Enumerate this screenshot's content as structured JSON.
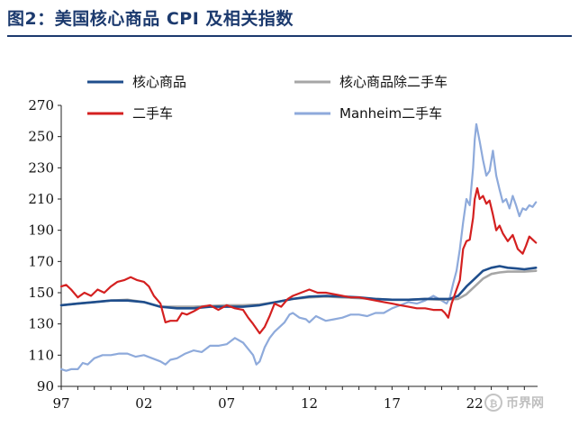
{
  "figure": {
    "title": "图2：美国核心商品 CPI 及相关指数"
  },
  "watermark": {
    "text": "币界网"
  },
  "chart_data": {
    "type": "line",
    "title": "图2：美国核心商品 CPI 及相关指数",
    "xlabel": "",
    "ylabel": "",
    "xlim": [
      1997,
      2025.8
    ],
    "ylim": [
      90,
      270
    ],
    "y_ticks": [
      90,
      110,
      130,
      150,
      170,
      190,
      210,
      230,
      250,
      270
    ],
    "x_ticks": [
      {
        "value": 1997,
        "label": "97"
      },
      {
        "value": 2002,
        "label": "02"
      },
      {
        "value": 2007,
        "label": "07"
      },
      {
        "value": 2012,
        "label": "12"
      },
      {
        "value": 2017,
        "label": "17"
      },
      {
        "value": 2022,
        "label": "22"
      }
    ],
    "grid": false,
    "legend_position": "top",
    "series": [
      {
        "name": "核心商品",
        "color": "#1f4e8c",
        "width": 2.6,
        "points": [
          [
            1997,
            142
          ],
          [
            1998,
            143
          ],
          [
            1999,
            144
          ],
          [
            2000,
            145
          ],
          [
            2001,
            145
          ],
          [
            2002,
            144
          ],
          [
            2003,
            141
          ],
          [
            2004,
            140
          ],
          [
            2005,
            140
          ],
          [
            2006,
            141
          ],
          [
            2007,
            141
          ],
          [
            2008,
            141
          ],
          [
            2009,
            142
          ],
          [
            2010,
            144
          ],
          [
            2011,
            146
          ],
          [
            2012,
            147.5
          ],
          [
            2013,
            148
          ],
          [
            2014,
            147.5
          ],
          [
            2015,
            147
          ],
          [
            2016,
            146
          ],
          [
            2017,
            145.5
          ],
          [
            2018,
            145.5
          ],
          [
            2019,
            146
          ],
          [
            2020,
            146
          ],
          [
            2020.5,
            146
          ],
          [
            2021,
            148
          ],
          [
            2021.5,
            154
          ],
          [
            2022,
            159
          ],
          [
            2022.5,
            164
          ],
          [
            2023,
            166
          ],
          [
            2023.5,
            167
          ],
          [
            2024,
            166
          ],
          [
            2024.5,
            165.5
          ],
          [
            2025,
            165
          ],
          [
            2025.7,
            166
          ]
        ]
      },
      {
        "name": "核心商品除二手车",
        "color": "#a6a6a6",
        "width": 2.6,
        "points": [
          [
            1997,
            142
          ],
          [
            1998,
            143
          ],
          [
            1999,
            144
          ],
          [
            2000,
            145
          ],
          [
            2001,
            145.5
          ],
          [
            2002,
            144
          ],
          [
            2003,
            141
          ],
          [
            2004,
            141
          ],
          [
            2005,
            141
          ],
          [
            2006,
            141.5
          ],
          [
            2007,
            142
          ],
          [
            2008,
            142
          ],
          [
            2009,
            142.5
          ],
          [
            2010,
            144
          ],
          [
            2011,
            146
          ],
          [
            2012,
            147
          ],
          [
            2013,
            147.5
          ],
          [
            2014,
            147
          ],
          [
            2015,
            146.5
          ],
          [
            2016,
            146
          ],
          [
            2017,
            145.5
          ],
          [
            2018,
            145.5
          ],
          [
            2019,
            146
          ],
          [
            2020,
            145.5
          ],
          [
            2021,
            146
          ],
          [
            2021.5,
            149
          ],
          [
            2022,
            154
          ],
          [
            2022.5,
            159
          ],
          [
            2023,
            162
          ],
          [
            2023.5,
            163
          ],
          [
            2024,
            163.5
          ],
          [
            2025,
            163.5
          ],
          [
            2025.7,
            164
          ]
        ]
      },
      {
        "name": "二手车",
        "color": "#d42020",
        "width": 2.2,
        "points": [
          [
            1997,
            154
          ],
          [
            1997.3,
            155
          ],
          [
            1997.6,
            152
          ],
          [
            1998,
            147
          ],
          [
            1998.4,
            150
          ],
          [
            1998.8,
            148
          ],
          [
            1999.2,
            152
          ],
          [
            1999.6,
            150
          ],
          [
            2000,
            154
          ],
          [
            2000.4,
            157
          ],
          [
            2000.8,
            158
          ],
          [
            2001.2,
            160
          ],
          [
            2001.6,
            158
          ],
          [
            2002,
            157
          ],
          [
            2002.3,
            154
          ],
          [
            2002.6,
            148
          ],
          [
            2003,
            143
          ],
          [
            2003.3,
            131
          ],
          [
            2003.6,
            132
          ],
          [
            2004,
            132
          ],
          [
            2004.3,
            137
          ],
          [
            2004.6,
            136
          ],
          [
            2005,
            138
          ],
          [
            2005.5,
            141
          ],
          [
            2006,
            142
          ],
          [
            2006.5,
            139
          ],
          [
            2007,
            142
          ],
          [
            2007.5,
            140
          ],
          [
            2008,
            139
          ],
          [
            2008.3,
            134
          ],
          [
            2008.6,
            130
          ],
          [
            2009,
            124
          ],
          [
            2009.3,
            128
          ],
          [
            2009.6,
            135
          ],
          [
            2009.9,
            143
          ],
          [
            2010.3,
            141
          ],
          [
            2010.7,
            146
          ],
          [
            2011,
            148
          ],
          [
            2011.5,
            150
          ],
          [
            2012,
            152
          ],
          [
            2012.5,
            150
          ],
          [
            2013,
            150
          ],
          [
            2013.5,
            149
          ],
          [
            2014,
            148
          ],
          [
            2014.5,
            147
          ],
          [
            2015,
            147
          ],
          [
            2015.5,
            146
          ],
          [
            2016,
            145
          ],
          [
            2016.5,
            144
          ],
          [
            2017,
            143
          ],
          [
            2017.5,
            142
          ],
          [
            2018,
            141
          ],
          [
            2018.5,
            140
          ],
          [
            2019,
            140
          ],
          [
            2019.5,
            139
          ],
          [
            2020,
            139
          ],
          [
            2020.2,
            137
          ],
          [
            2020.4,
            134
          ],
          [
            2020.6,
            143
          ],
          [
            2020.9,
            152
          ],
          [
            2021.1,
            158
          ],
          [
            2021.3,
            178
          ],
          [
            2021.5,
            183
          ],
          [
            2021.7,
            184
          ],
          [
            2021.9,
            198
          ],
          [
            2022,
            210
          ],
          [
            2022.15,
            217
          ],
          [
            2022.3,
            210
          ],
          [
            2022.5,
            212
          ],
          [
            2022.7,
            207
          ],
          [
            2022.9,
            209
          ],
          [
            2023.1,
            200
          ],
          [
            2023.3,
            190
          ],
          [
            2023.5,
            193
          ],
          [
            2023.7,
            188
          ],
          [
            2024,
            183
          ],
          [
            2024.3,
            187
          ],
          [
            2024.6,
            178
          ],
          [
            2024.9,
            175
          ],
          [
            2025.1,
            180
          ],
          [
            2025.3,
            186
          ],
          [
            2025.5,
            184
          ],
          [
            2025.7,
            182
          ]
        ]
      },
      {
        "name": "Manheim二手车",
        "color": "#8eaadb",
        "width": 2.2,
        "points": [
          [
            1997,
            101
          ],
          [
            1997.3,
            100
          ],
          [
            1997.6,
            101
          ],
          [
            1998,
            101
          ],
          [
            1998.3,
            105
          ],
          [
            1998.6,
            104
          ],
          [
            1999,
            108
          ],
          [
            1999.5,
            110
          ],
          [
            2000,
            110
          ],
          [
            2000.5,
            111
          ],
          [
            2001,
            111
          ],
          [
            2001.5,
            109
          ],
          [
            2002,
            110
          ],
          [
            2002.5,
            108
          ],
          [
            2003,
            106
          ],
          [
            2003.3,
            104
          ],
          [
            2003.6,
            107
          ],
          [
            2004,
            108
          ],
          [
            2004.5,
            111
          ],
          [
            2005,
            113
          ],
          [
            2005.5,
            112
          ],
          [
            2006,
            116
          ],
          [
            2006.5,
            116
          ],
          [
            2007,
            117
          ],
          [
            2007.5,
            121
          ],
          [
            2008,
            118
          ],
          [
            2008.3,
            114
          ],
          [
            2008.6,
            110
          ],
          [
            2008.8,
            104
          ],
          [
            2009,
            106
          ],
          [
            2009.3,
            115
          ],
          [
            2009.6,
            121
          ],
          [
            2009.9,
            125
          ],
          [
            2010.2,
            128
          ],
          [
            2010.5,
            131
          ],
          [
            2010.8,
            136
          ],
          [
            2011,
            137
          ],
          [
            2011.4,
            134
          ],
          [
            2011.8,
            133
          ],
          [
            2012,
            131
          ],
          [
            2012.4,
            135
          ],
          [
            2012.8,
            133
          ],
          [
            2013,
            132
          ],
          [
            2013.5,
            133
          ],
          [
            2014,
            134
          ],
          [
            2014.5,
            136
          ],
          [
            2015,
            136
          ],
          [
            2015.5,
            135
          ],
          [
            2016,
            137
          ],
          [
            2016.5,
            137
          ],
          [
            2017,
            140
          ],
          [
            2017.5,
            142
          ],
          [
            2018,
            144
          ],
          [
            2018.5,
            143
          ],
          [
            2019,
            145
          ],
          [
            2019.5,
            148
          ],
          [
            2020,
            145
          ],
          [
            2020.3,
            143
          ],
          [
            2020.5,
            147
          ],
          [
            2020.7,
            156
          ],
          [
            2020.9,
            164
          ],
          [
            2021.1,
            178
          ],
          [
            2021.3,
            195
          ],
          [
            2021.5,
            210
          ],
          [
            2021.7,
            206
          ],
          [
            2021.9,
            230
          ],
          [
            2022,
            248
          ],
          [
            2022.1,
            258
          ],
          [
            2022.3,
            247
          ],
          [
            2022.5,
            235
          ],
          [
            2022.7,
            225
          ],
          [
            2022.9,
            228
          ],
          [
            2023.1,
            241
          ],
          [
            2023.3,
            225
          ],
          [
            2023.5,
            216
          ],
          [
            2023.7,
            208
          ],
          [
            2023.9,
            210
          ],
          [
            2024.1,
            204
          ],
          [
            2024.3,
            212
          ],
          [
            2024.5,
            206
          ],
          [
            2024.7,
            199
          ],
          [
            2024.9,
            204
          ],
          [
            2025.1,
            203
          ],
          [
            2025.3,
            206
          ],
          [
            2025.5,
            205
          ],
          [
            2025.7,
            208
          ]
        ]
      }
    ]
  }
}
